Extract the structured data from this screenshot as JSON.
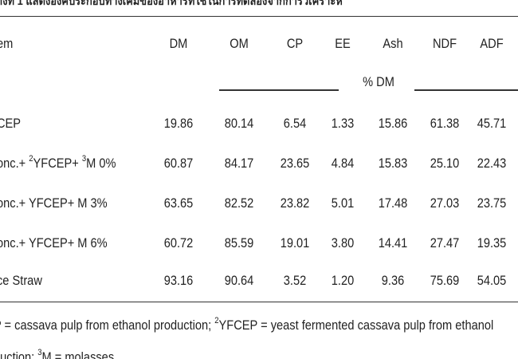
{
  "header": {
    "title": "างที่ 1 แสดงองค์ประกอบทางเคมีของอาหารที่ใช้ในการทดลองจากการวิเคราะห์"
  },
  "table": {
    "row_header": "em",
    "columns": [
      "DM",
      "OM",
      "CP",
      "EE",
      "Ash",
      "NDF",
      "ADF"
    ],
    "unit_label": "% DM",
    "rows": [
      {
        "label": [
          {
            "text": "CEP",
            "sup": false
          }
        ],
        "values": [
          "19.86",
          "80.14",
          "6.54",
          "1.33",
          "15.86",
          "61.38",
          "45.71"
        ]
      },
      {
        "label": [
          {
            "text": "onc.+ ",
            "sup": false
          },
          {
            "text": "2",
            "sup": true
          },
          {
            "text": "YFCEP+ ",
            "sup": false
          },
          {
            "text": "3",
            "sup": true
          },
          {
            "text": "M 0%",
            "sup": false
          }
        ],
        "values": [
          "60.87",
          "84.17",
          "23.65",
          "4.84",
          "15.83",
          "25.10",
          "22.43"
        ]
      },
      {
        "label": [
          {
            "text": "onc.+ YFCEP+ M 3%",
            "sup": false
          }
        ],
        "values": [
          "63.65",
          "82.52",
          "23.82",
          "5.01",
          "17.48",
          "27.03",
          "23.75"
        ]
      },
      {
        "label": [
          {
            "text": "onc.+ YFCEP+ M 6%",
            "sup": false
          }
        ],
        "values": [
          "60.72",
          "85.59",
          "19.01",
          "3.80",
          "14.41",
          "27.47",
          "19.35"
        ]
      },
      {
        "label": [
          {
            "text": "ce Straw",
            "sup": false
          }
        ],
        "values": [
          "93.16",
          "90.64",
          "3.52",
          "1.20",
          "9.36",
          "75.69",
          "54.05"
        ]
      }
    ]
  },
  "footnotes": [
    [
      {
        "text": "P = cassava pulp from ethanol production; ",
        "sup": false
      },
      {
        "text": "2",
        "sup": true
      },
      {
        "text": "YFCEP = yeast fermented cassava pulp from ethanol",
        "sup": false
      }
    ],
    [
      {
        "text": "duction; ",
        "sup": false
      },
      {
        "text": "3",
        "sup": true
      },
      {
        "text": "M = molasses",
        "sup": false
      }
    ]
  ]
}
